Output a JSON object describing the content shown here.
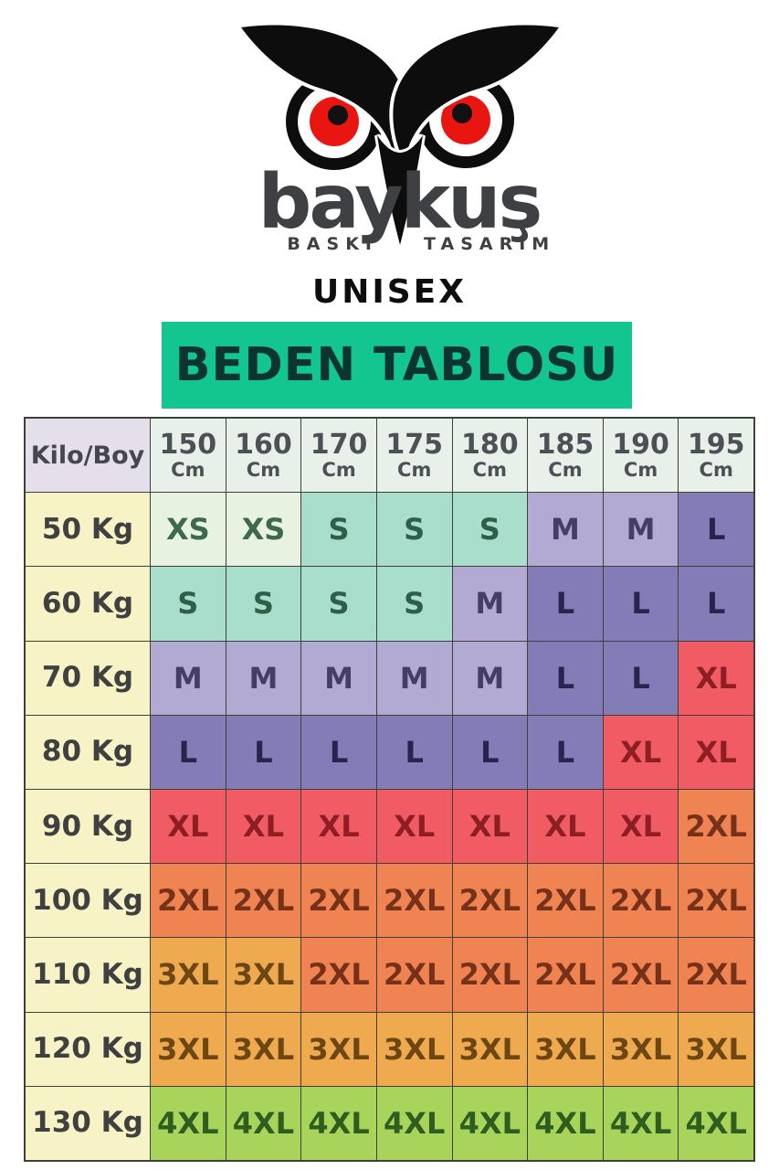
{
  "brand": {
    "name": "baykuş",
    "tagline_left": "BASKI",
    "tagline_right": "TASARIM",
    "logo_colors": {
      "body": "#0d0d0d",
      "eye_ring": "#ffffff",
      "iris": "#e81511",
      "pupil": "#111111",
      "wordmark": "#3f4043"
    }
  },
  "heading": "UNISEX",
  "banner": {
    "label": "BEDEN TABLOSU",
    "bg": "#13c68f",
    "fg": "#0c3531"
  },
  "table": {
    "corner_label": "Kilo/Boy",
    "column_unit": "Cm",
    "columns": [
      "150",
      "160",
      "170",
      "175",
      "180",
      "185",
      "190",
      "195"
    ],
    "rows": [
      {
        "label": "50 Kg",
        "sizes": [
          "XS",
          "XS",
          "S",
          "S",
          "S",
          "M",
          "M",
          "L"
        ]
      },
      {
        "label": "60 Kg",
        "sizes": [
          "S",
          "S",
          "S",
          "S",
          "M",
          "L",
          "L",
          "L"
        ]
      },
      {
        "label": "70 Kg",
        "sizes": [
          "M",
          "M",
          "M",
          "M",
          "M",
          "L",
          "L",
          "XL"
        ]
      },
      {
        "label": "80 Kg",
        "sizes": [
          "L",
          "L",
          "L",
          "L",
          "L",
          "L",
          "XL",
          "XL"
        ]
      },
      {
        "label": "90 Kg",
        "sizes": [
          "XL",
          "XL",
          "XL",
          "XL",
          "XL",
          "XL",
          "XL",
          "2XL"
        ]
      },
      {
        "label": "100 Kg",
        "sizes": [
          "2XL",
          "2XL",
          "2XL",
          "2XL",
          "2XL",
          "2XL",
          "2XL",
          "2XL"
        ]
      },
      {
        "label": "110 Kg",
        "sizes": [
          "3XL",
          "3XL",
          "2XL",
          "2XL",
          "2XL",
          "2XL",
          "2XL",
          "2XL"
        ]
      },
      {
        "label": "120 Kg",
        "sizes": [
          "3XL",
          "3XL",
          "3XL",
          "3XL",
          "3XL",
          "3XL",
          "3XL",
          "3XL"
        ]
      },
      {
        "label": "130 Kg",
        "sizes": [
          "4XL",
          "4XL",
          "4XL",
          "4XL",
          "4XL",
          "4XL",
          "4XL",
          "4XL"
        ]
      }
    ],
    "palette": {
      "XS": {
        "bg": "#e7f2e1",
        "fg": "#3d6a4e"
      },
      "S": {
        "bg": "#a9decc",
        "fg": "#2f5f4a"
      },
      "M": {
        "bg": "#b2aad2",
        "fg": "#453d68"
      },
      "L": {
        "bg": "#847cb6",
        "fg": "#2a234e"
      },
      "XL": {
        "bg": "#f15b63",
        "fg": "#8c1e24"
      },
      "2XL": {
        "bg": "#ef8351",
        "fg": "#76311a"
      },
      "3XL": {
        "bg": "#efa94e",
        "fg": "#6c4713"
      },
      "4XL": {
        "bg": "#a8d45b",
        "fg": "#2f5d20"
      },
      "header": {
        "bg": "#e7f1ea",
        "fg": "#4c5156"
      },
      "corner": {
        "bg": "#e5dfeb",
        "fg": "#45464f"
      },
      "rowlabel": {
        "bg": "#f7f3c7",
        "fg": "#3f4040"
      }
    }
  },
  "chart_data": {
    "type": "table",
    "title": "BEDEN TABLOSU (UNISEX)",
    "xlabel": "Boy (Cm)",
    "ylabel": "Kilo (Kg)",
    "columns_cm": [
      150,
      160,
      170,
      175,
      180,
      185,
      190,
      195
    ],
    "rows_kg": [
      50,
      60,
      70,
      80,
      90,
      100,
      110,
      120,
      130
    ],
    "values": [
      [
        "XS",
        "XS",
        "S",
        "S",
        "S",
        "M",
        "M",
        "L"
      ],
      [
        "S",
        "S",
        "S",
        "S",
        "M",
        "L",
        "L",
        "L"
      ],
      [
        "M",
        "M",
        "M",
        "M",
        "M",
        "L",
        "L",
        "XL"
      ],
      [
        "L",
        "L",
        "L",
        "L",
        "L",
        "L",
        "XL",
        "XL"
      ],
      [
        "XL",
        "XL",
        "XL",
        "XL",
        "XL",
        "XL",
        "XL",
        "2XL"
      ],
      [
        "2XL",
        "2XL",
        "2XL",
        "2XL",
        "2XL",
        "2XL",
        "2XL",
        "2XL"
      ],
      [
        "3XL",
        "3XL",
        "2XL",
        "2XL",
        "2XL",
        "2XL",
        "2XL",
        "2XL"
      ],
      [
        "3XL",
        "3XL",
        "3XL",
        "3XL",
        "3XL",
        "3XL",
        "3XL",
        "3XL"
      ],
      [
        "4XL",
        "4XL",
        "4XL",
        "4XL",
        "4XL",
        "4XL",
        "4XL",
        "4XL"
      ]
    ]
  }
}
